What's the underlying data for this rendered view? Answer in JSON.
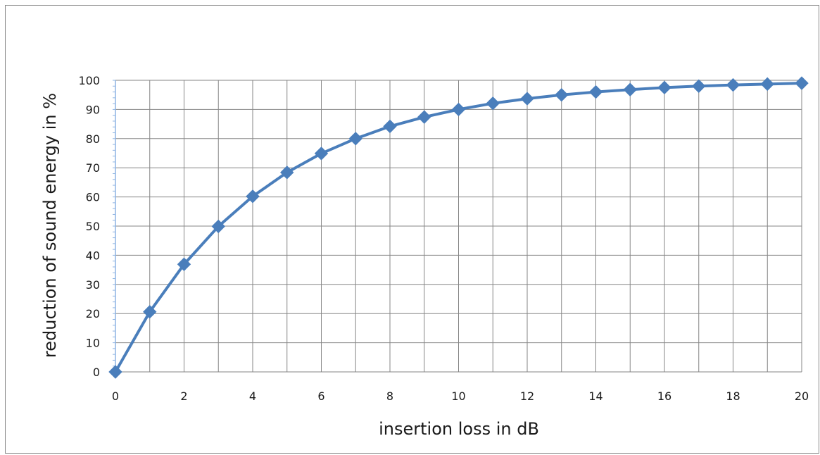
{
  "chart_data": {
    "type": "line",
    "title": "",
    "xlabel": "insertion loss in dB",
    "ylabel": "reduction of sound energy in %",
    "xlim": [
      0,
      20
    ],
    "ylim": [
      0,
      100
    ],
    "x_ticks": [
      0,
      2,
      4,
      6,
      8,
      10,
      12,
      14,
      16,
      18,
      20
    ],
    "y_ticks": [
      0,
      10,
      20,
      30,
      40,
      50,
      60,
      70,
      80,
      90,
      100
    ],
    "grid": true,
    "legend": "none",
    "marker": "diamond",
    "series": [
      {
        "color": "#4a7ebb",
        "x": [
          0,
          1,
          2,
          3,
          4,
          5,
          6,
          7,
          8,
          9,
          10,
          11,
          12,
          13,
          14,
          15,
          16,
          17,
          18,
          19,
          20
        ],
        "values": [
          0,
          20.6,
          36.9,
          49.9,
          60.2,
          68.4,
          74.9,
          80.0,
          84.2,
          87.4,
          90.0,
          92.1,
          93.7,
          95.0,
          96.0,
          96.8,
          97.5,
          98.0,
          98.4,
          98.7,
          99.0
        ]
      }
    ]
  }
}
